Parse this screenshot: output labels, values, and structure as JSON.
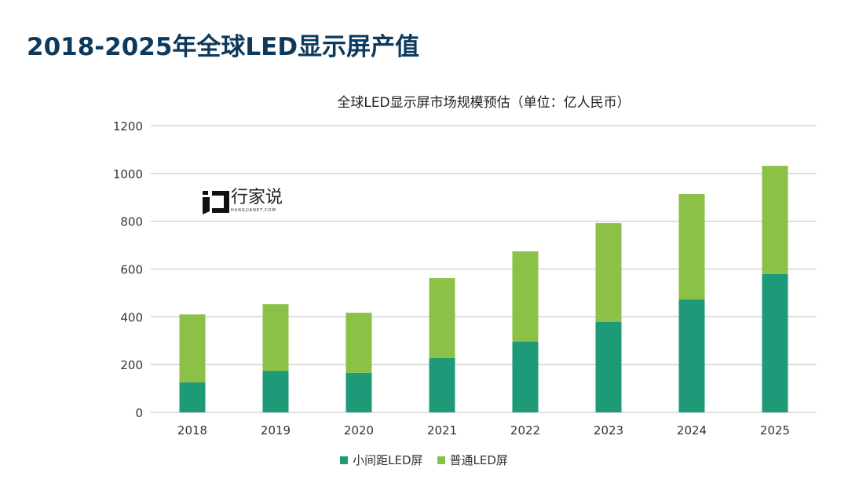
{
  "page_title": "2018-2025年全球LED显示屏产值",
  "logo": {
    "name": "行家说",
    "sub": "HANGJIANET.COM"
  },
  "colors": {
    "small_pitch": "#1e9a79",
    "regular": "#8bc146",
    "title": "#0d3a5c"
  },
  "chart_data": {
    "type": "bar",
    "stacked": true,
    "title": "全球LED显示屏市场规模预估（单位：亿人民币）",
    "categories": [
      "2018",
      "2019",
      "2020",
      "2021",
      "2022",
      "2023",
      "2024",
      "2025"
    ],
    "series": [
      {
        "name": "小间距LED屏",
        "values": [
          126,
          174,
          165,
          227,
          296,
          378,
          473,
          579
        ]
      },
      {
        "name": "普通LED屏",
        "values": [
          284,
          279,
          252,
          335,
          378,
          414,
          441,
          453
        ]
      }
    ],
    "yticks": [
      "0",
      "200",
      "400",
      "600",
      "800",
      "1000",
      "1200"
    ],
    "ylim": [
      0,
      1200
    ],
    "grid": true,
    "legend": "bottom"
  }
}
